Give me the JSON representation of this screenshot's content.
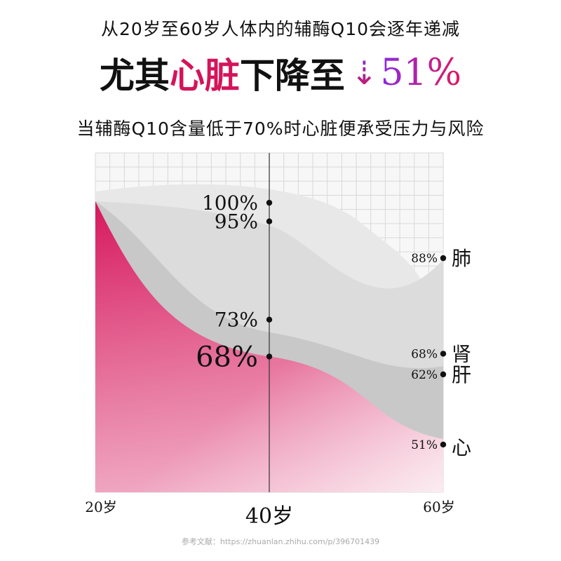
{
  "header": {
    "line1": "从20岁至60岁人体内的辅酶Q10会逐年递减",
    "headline_part1": "尤其",
    "headline_accent": "心脏",
    "headline_part2": "下降至",
    "headline_arrow": "⇣",
    "headline_value": "51%",
    "line3": "当辅酶Q10含量低于70%时心脏便承受压力与风险"
  },
  "footer": {
    "text": "参考文献：https://zhuanlan.zhihu.com/p/396701439"
  },
  "colors": {
    "accent": "#d4145a",
    "heart_fill": "#d6175c",
    "lung_fill": "#e8e8e8",
    "kidney_fill": "#dcdcdc",
    "liver_fill": "#c8c8c8",
    "grid": "#d8d8d8"
  },
  "chart_data": {
    "type": "area",
    "x_ticks": [
      "20岁",
      "40岁",
      "60岁"
    ],
    "x": [
      20,
      40,
      60
    ],
    "ylim": [
      0,
      100
    ],
    "series": [
      {
        "name": "肺",
        "values": [
          100,
          100,
          88
        ],
        "start_label": "100%",
        "end_label": "88%"
      },
      {
        "name": "肾",
        "values": [
          100,
          95,
          68
        ],
        "start_label": "95%",
        "end_label": "68%"
      },
      {
        "name": "肝",
        "values": [
          100,
          73,
          62
        ],
        "start_label": "73%",
        "end_label": "62%"
      },
      {
        "name": "心",
        "values": [
          100,
          68,
          51
        ],
        "start_label": "68%",
        "end_label": "51%"
      }
    ]
  }
}
